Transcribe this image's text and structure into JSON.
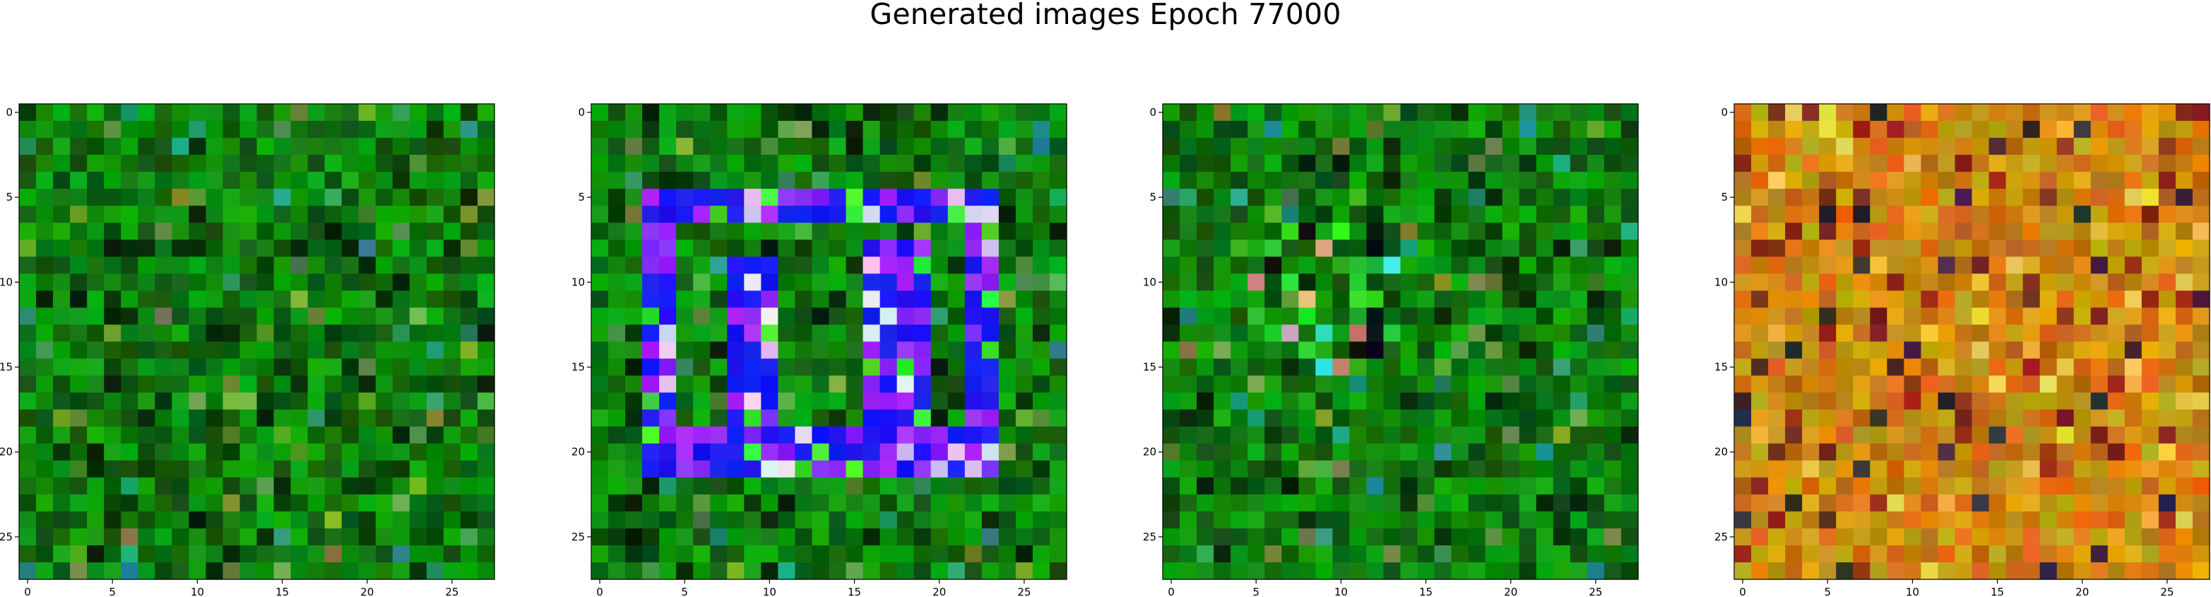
{
  "figure": {
    "title": "Generated images Epoch 77000"
  },
  "chart_data": [
    {
      "type": "heatmap",
      "title": "",
      "xlabel": "",
      "ylabel": "",
      "size": [
        28,
        28
      ],
      "xlim": [
        -0.5,
        27.5
      ],
      "ylim": [
        27.5,
        -0.5
      ],
      "xticks": [
        0,
        5,
        10,
        15,
        20,
        25
      ],
      "yticks": [
        0,
        5,
        10,
        15,
        20,
        25
      ],
      "grid": false,
      "palette": "green",
      "pattern": "noise",
      "base_color": "#1f8a14"
    },
    {
      "type": "heatmap",
      "title": "",
      "xlabel": "",
      "ylabel": "",
      "size": [
        28,
        28
      ],
      "xlim": [
        -0.5,
        27.5
      ],
      "ylim": [
        27.5,
        -0.5
      ],
      "xticks": [
        0,
        5,
        10,
        15,
        20,
        25
      ],
      "yticks": [
        0,
        5,
        10,
        15,
        20,
        25
      ],
      "grid": false,
      "palette": "green",
      "pattern": "blue-ring",
      "base_color": "#2a9a1a",
      "accent_color": "#3a10ff"
    },
    {
      "type": "heatmap",
      "title": "",
      "xlabel": "",
      "ylabel": "",
      "size": [
        28,
        28
      ],
      "xlim": [
        -0.5,
        27.5
      ],
      "ylim": [
        27.5,
        -0.5
      ],
      "xticks": [
        0,
        5,
        10,
        15,
        20,
        25
      ],
      "yticks": [
        0,
        5,
        10,
        15,
        20,
        25
      ],
      "grid": false,
      "palette": "green",
      "pattern": "dark-center",
      "base_color": "#238c18"
    },
    {
      "type": "heatmap",
      "title": "",
      "xlabel": "",
      "ylabel": "",
      "size": [
        28,
        28
      ],
      "xlim": [
        -0.5,
        27.5
      ],
      "ylim": [
        27.5,
        -0.5
      ],
      "xticks": [
        0,
        5,
        10,
        15,
        20,
        25
      ],
      "yticks": [
        0,
        5,
        10,
        15,
        20,
        25
      ],
      "grid": false,
      "palette": "orange",
      "pattern": "noise",
      "base_color": "#c8841a"
    }
  ]
}
